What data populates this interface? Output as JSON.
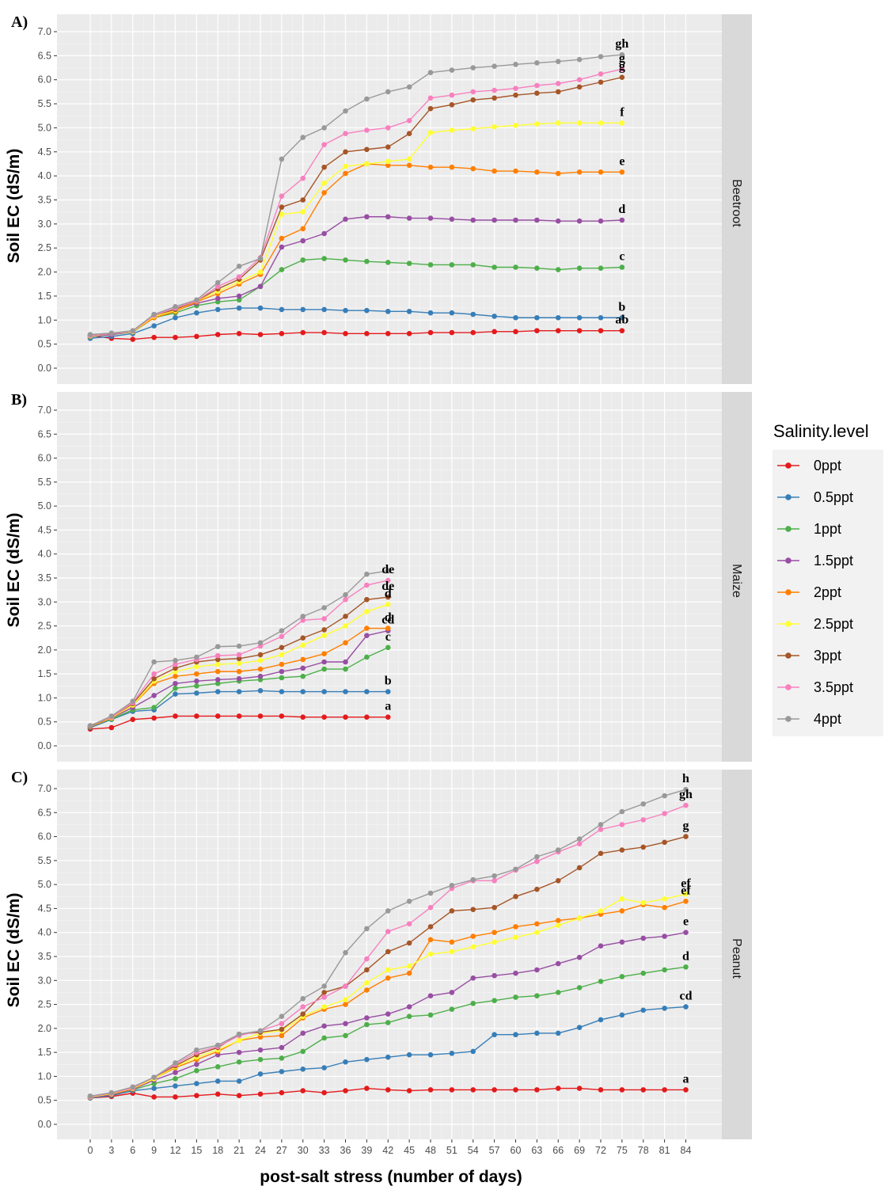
{
  "legend_title": "Salinity.level",
  "levels": [
    {
      "name": "0ppt",
      "color": "#E41A1C"
    },
    {
      "name": "0.5ppt",
      "color": "#377EB8"
    },
    {
      "name": "1ppt",
      "color": "#4DAF4A"
    },
    {
      "name": "1.5ppt",
      "color": "#984EA3"
    },
    {
      "name": "2ppt",
      "color": "#FF7F00"
    },
    {
      "name": "2.5ppt",
      "color": "#FFFF33"
    },
    {
      "name": "3ppt",
      "color": "#A65628"
    },
    {
      "name": "3.5ppt",
      "color": "#F781BF"
    },
    {
      "name": "4ppt",
      "color": "#999999"
    }
  ],
  "chart_data": {
    "type": "line",
    "xlabel": "post-salt stress (number of days)",
    "ylabel": "Soil EC (dS/m)",
    "ylim": [
      0,
      7.0
    ],
    "y_ticks": [
      "0.0",
      "0.5",
      "1.0",
      "1.5",
      "2.0",
      "2.5",
      "3.0",
      "3.5",
      "4.0",
      "4.5",
      "5.0",
      "5.5",
      "6.0",
      "6.5",
      "7.0"
    ],
    "x_ticks": [
      "0",
      "3",
      "6",
      "9",
      "12",
      "15",
      "18",
      "21",
      "24",
      "27",
      "30",
      "33",
      "36",
      "39",
      "42",
      "45",
      "48",
      "51",
      "54",
      "57",
      "60",
      "63",
      "66",
      "69",
      "72",
      "75",
      "78",
      "81",
      "84"
    ],
    "grid": true,
    "legend_position": "right",
    "panels": [
      {
        "tag": "A)",
        "strip": "Beetroot",
        "x": [
          0,
          3,
          6,
          9,
          12,
          15,
          18,
          21,
          24,
          27,
          30,
          33,
          36,
          39,
          42,
          45,
          48,
          51,
          54,
          57,
          60,
          63,
          66,
          69,
          72,
          75
        ],
        "series": [
          {
            "name": "0ppt",
            "values": [
              0.68,
              0.62,
              0.6,
              0.64,
              0.64,
              0.66,
              0.7,
              0.72,
              0.7,
              0.72,
              0.74,
              0.74,
              0.72,
              0.72,
              0.72,
              0.72,
              0.74,
              0.74,
              0.74,
              0.76,
              0.76,
              0.78,
              0.78,
              0.78,
              0.78,
              0.78
            ]
          },
          {
            "name": "0.5ppt",
            "values": [
              0.62,
              0.66,
              0.72,
              0.88,
              1.05,
              1.15,
              1.22,
              1.25,
              1.25,
              1.22,
              1.22,
              1.22,
              1.2,
              1.2,
              1.18,
              1.18,
              1.15,
              1.15,
              1.12,
              1.08,
              1.05,
              1.05,
              1.05,
              1.05,
              1.05,
              1.05
            ]
          },
          {
            "name": "1ppt",
            "values": [
              0.65,
              0.7,
              0.75,
              1.05,
              1.15,
              1.3,
              1.38,
              1.42,
              1.7,
              2.05,
              2.25,
              2.28,
              2.25,
              2.22,
              2.2,
              2.18,
              2.15,
              2.15,
              2.15,
              2.1,
              2.1,
              2.08,
              2.05,
              2.08,
              2.08,
              2.1
            ]
          },
          {
            "name": "1.5ppt",
            "values": [
              0.66,
              0.7,
              0.76,
              1.1,
              1.2,
              1.35,
              1.45,
              1.5,
              1.7,
              2.52,
              2.65,
              2.8,
              3.1,
              3.15,
              3.15,
              3.12,
              3.12,
              3.1,
              3.08,
              3.08,
              3.08,
              3.08,
              3.06,
              3.06,
              3.06,
              3.08
            ]
          },
          {
            "name": "2ppt",
            "values": [
              0.67,
              0.72,
              0.76,
              1.05,
              1.18,
              1.38,
              1.55,
              1.75,
              1.95,
              2.7,
              2.9,
              3.65,
              4.05,
              4.25,
              4.22,
              4.22,
              4.18,
              4.18,
              4.15,
              4.1,
              4.1,
              4.08,
              4.05,
              4.08,
              4.08,
              4.08
            ]
          },
          {
            "name": "2.5ppt",
            "values": [
              0.67,
              0.72,
              0.76,
              1.08,
              1.2,
              1.4,
              1.6,
              1.8,
              2.0,
              3.2,
              3.25,
              3.85,
              4.2,
              4.25,
              4.3,
              4.35,
              4.9,
              4.95,
              4.98,
              5.02,
              5.05,
              5.08,
              5.1,
              5.1,
              5.1,
              5.1
            ]
          },
          {
            "name": "3ppt",
            "values": [
              0.68,
              0.72,
              0.77,
              1.1,
              1.22,
              1.4,
              1.65,
              1.85,
              2.25,
              3.35,
              3.5,
              4.18,
              4.5,
              4.55,
              4.6,
              4.88,
              5.4,
              5.48,
              5.58,
              5.62,
              5.68,
              5.72,
              5.75,
              5.85,
              5.95,
              6.05
            ]
          },
          {
            "name": "3.5ppt",
            "values": [
              0.68,
              0.72,
              0.77,
              1.1,
              1.25,
              1.4,
              1.7,
              1.9,
              2.3,
              3.58,
              3.95,
              4.65,
              4.88,
              4.95,
              5.0,
              5.15,
              5.62,
              5.68,
              5.75,
              5.78,
              5.82,
              5.88,
              5.92,
              6.0,
              6.12,
              6.22
            ]
          },
          {
            "name": "4ppt",
            "values": [
              0.7,
              0.73,
              0.78,
              1.12,
              1.28,
              1.42,
              1.78,
              2.12,
              2.28,
              4.35,
              4.8,
              5.0,
              5.35,
              5.6,
              5.75,
              5.85,
              6.15,
              6.2,
              6.25,
              6.28,
              6.32,
              6.35,
              6.38,
              6.42,
              6.48,
              6.52
            ]
          }
        ],
        "sig_letters": [
          {
            "series": "0ppt",
            "text": "ab"
          },
          {
            "series": "0.5ppt",
            "text": "b"
          },
          {
            "series": "1ppt",
            "text": "c"
          },
          {
            "series": "1.5ppt",
            "text": "d"
          },
          {
            "series": "2ppt",
            "text": "e"
          },
          {
            "series": "2.5ppt",
            "text": "f"
          },
          {
            "series": "3ppt",
            "text": "g"
          },
          {
            "series": "3.5ppt",
            "text": "g"
          },
          {
            "series": "4ppt",
            "text": "gh"
          }
        ]
      },
      {
        "tag": "B)",
        "strip": "Maize",
        "x": [
          0,
          3,
          6,
          9,
          12,
          15,
          18,
          21,
          24,
          27,
          30,
          33,
          36,
          39,
          42
        ],
        "series": [
          {
            "name": "0ppt",
            "values": [
              0.35,
              0.38,
              0.55,
              0.58,
              0.62,
              0.62,
              0.62,
              0.62,
              0.62,
              0.62,
              0.6,
              0.6,
              0.6,
              0.6,
              0.6
            ]
          },
          {
            "name": "0.5ppt",
            "values": [
              0.38,
              0.55,
              0.72,
              0.75,
              1.08,
              1.1,
              1.13,
              1.13,
              1.15,
              1.13,
              1.13,
              1.13,
              1.13,
              1.13,
              1.13
            ]
          },
          {
            "name": "1ppt",
            "values": [
              0.4,
              0.56,
              0.75,
              0.8,
              1.2,
              1.25,
              1.3,
              1.35,
              1.38,
              1.42,
              1.45,
              1.6,
              1.6,
              1.85,
              2.05
            ]
          },
          {
            "name": "1.5ppt",
            "values": [
              0.4,
              0.58,
              0.8,
              1.05,
              1.3,
              1.35,
              1.38,
              1.4,
              1.45,
              1.55,
              1.62,
              1.75,
              1.75,
              2.3,
              2.4
            ]
          },
          {
            "name": "2ppt",
            "values": [
              0.4,
              0.58,
              0.85,
              1.3,
              1.45,
              1.5,
              1.55,
              1.55,
              1.6,
              1.7,
              1.8,
              1.92,
              2.15,
              2.45,
              2.45
            ]
          },
          {
            "name": "2.5ppt",
            "values": [
              0.41,
              0.59,
              0.85,
              1.35,
              1.55,
              1.65,
              1.7,
              1.72,
              1.78,
              1.9,
              2.1,
              2.3,
              2.5,
              2.8,
              2.95
            ]
          },
          {
            "name": "3ppt",
            "values": [
              0.41,
              0.6,
              0.88,
              1.4,
              1.62,
              1.75,
              1.8,
              1.82,
              1.9,
              2.05,
              2.25,
              2.42,
              2.7,
              3.05,
              3.1
            ]
          },
          {
            "name": "3.5ppt",
            "values": [
              0.42,
              0.6,
              0.9,
              1.5,
              1.7,
              1.8,
              1.88,
              1.9,
              2.08,
              2.28,
              2.62,
              2.65,
              3.05,
              3.35,
              3.45
            ]
          },
          {
            "name": "4ppt",
            "values": [
              0.42,
              0.62,
              0.93,
              1.75,
              1.78,
              1.85,
              2.07,
              2.08,
              2.15,
              2.4,
              2.7,
              2.88,
              3.15,
              3.58,
              3.65
            ]
          }
        ],
        "sig_letters": [
          {
            "series": "0ppt",
            "text": "a"
          },
          {
            "series": "0.5ppt",
            "text": "b"
          },
          {
            "series": "1ppt",
            "text": "c"
          },
          {
            "series": "1.5ppt",
            "text": "cd"
          },
          {
            "series": "2ppt",
            "text": "d"
          },
          {
            "series": "2.5ppt",
            "text": "d"
          },
          {
            "series": "3ppt",
            "text": "de"
          },
          {
            "series": "3.5ppt",
            "text": "de"
          }
        ]
      },
      {
        "tag": "C)",
        "strip": "Peanut",
        "x": [
          0,
          3,
          6,
          9,
          12,
          15,
          18,
          21,
          24,
          27,
          30,
          33,
          36,
          39,
          42,
          45,
          48,
          51,
          54,
          57,
          60,
          63,
          66,
          69,
          72,
          75,
          78,
          81,
          84
        ],
        "series": [
          {
            "name": "0ppt",
            "values": [
              0.55,
              0.58,
              0.65,
              0.57,
              0.57,
              0.6,
              0.63,
              0.6,
              0.63,
              0.66,
              0.7,
              0.66,
              0.7,
              0.75,
              0.72,
              0.7,
              0.72,
              0.72,
              0.72,
              0.72,
              0.72,
              0.72,
              0.75,
              0.75,
              0.72,
              0.72,
              0.72,
              0.72,
              0.72
            ]
          },
          {
            "name": "0.5ppt",
            "values": [
              0.55,
              0.6,
              0.7,
              0.75,
              0.8,
              0.85,
              0.9,
              0.9,
              1.05,
              1.1,
              1.15,
              1.18,
              1.3,
              1.35,
              1.4,
              1.45,
              1.45,
              1.48,
              1.52,
              1.87,
              1.87,
              1.9,
              1.9,
              2.02,
              2.18,
              2.28,
              2.38,
              2.42,
              2.45
            ]
          },
          {
            "name": "1ppt",
            "values": [
              0.56,
              0.62,
              0.72,
              0.85,
              0.95,
              1.12,
              1.2,
              1.3,
              1.35,
              1.38,
              1.52,
              1.8,
              1.85,
              2.08,
              2.12,
              2.25,
              2.28,
              2.4,
              2.52,
              2.58,
              2.65,
              2.68,
              2.75,
              2.85,
              2.98,
              3.08,
              3.15,
              3.22,
              3.28
            ]
          },
          {
            "name": "1.5ppt",
            "values": [
              0.56,
              0.62,
              0.73,
              0.92,
              1.08,
              1.25,
              1.45,
              1.5,
              1.55,
              1.6,
              1.9,
              2.05,
              2.1,
              2.22,
              2.3,
              2.45,
              2.68,
              2.75,
              3.05,
              3.1,
              3.15,
              3.22,
              3.35,
              3.48,
              3.72,
              3.8,
              3.88,
              3.92,
              4.0
            ]
          },
          {
            "name": "2ppt",
            "values": [
              0.57,
              0.63,
              0.74,
              0.95,
              1.18,
              1.35,
              1.52,
              1.75,
              1.82,
              1.85,
              2.22,
              2.4,
              2.5,
              2.8,
              3.05,
              3.15,
              3.85,
              3.8,
              3.92,
              4.0,
              4.12,
              4.18,
              4.25,
              4.3,
              4.38,
              4.45,
              4.58,
              4.52,
              4.65
            ]
          },
          {
            "name": "2.5ppt",
            "values": [
              0.57,
              0.64,
              0.75,
              0.95,
              1.2,
              1.4,
              1.55,
              1.75,
              1.9,
              1.95,
              2.25,
              2.45,
              2.6,
              2.95,
              3.22,
              3.3,
              3.55,
              3.6,
              3.7,
              3.8,
              3.9,
              4.0,
              4.15,
              4.3,
              4.45,
              4.7,
              4.62,
              4.7,
              4.8
            ]
          },
          {
            "name": "3ppt",
            "values": [
              0.58,
              0.65,
              0.76,
              0.98,
              1.22,
              1.45,
              1.6,
              1.88,
              1.92,
              1.98,
              2.3,
              2.75,
              2.88,
              3.22,
              3.6,
              3.78,
              4.12,
              4.45,
              4.48,
              4.52,
              4.75,
              4.9,
              5.08,
              5.35,
              5.65,
              5.72,
              5.78,
              5.88,
              6.0
            ]
          },
          {
            "name": "3.5ppt",
            "values": [
              0.58,
              0.65,
              0.76,
              0.98,
              1.25,
              1.5,
              1.62,
              1.85,
              1.95,
              2.1,
              2.45,
              2.65,
              2.88,
              3.45,
              4.02,
              4.18,
              4.52,
              4.92,
              5.08,
              5.08,
              5.3,
              5.48,
              5.68,
              5.85,
              6.15,
              6.25,
              6.35,
              6.48,
              6.65
            ]
          },
          {
            "name": "4ppt",
            "values": [
              0.59,
              0.66,
              0.78,
              0.98,
              1.28,
              1.55,
              1.65,
              1.88,
              1.95,
              2.25,
              2.62,
              2.88,
              3.58,
              4.08,
              4.45,
              4.65,
              4.82,
              4.98,
              5.1,
              5.18,
              5.32,
              5.58,
              5.72,
              5.95,
              6.25,
              6.52,
              6.68,
              6.85,
              6.98
            ]
          }
        ],
        "sig_letters": [
          {
            "series": "0ppt",
            "text": "a"
          },
          {
            "series": "0.5ppt",
            "text": "cd"
          },
          {
            "series": "1ppt",
            "text": "d"
          },
          {
            "series": "1.5ppt",
            "text": "e"
          },
          {
            "series": "2ppt",
            "text": "ef"
          },
          {
            "series": "2.5ppt",
            "text": "ef"
          },
          {
            "series": "3ppt",
            "text": "g"
          },
          {
            "series": "3.5ppt",
            "text": "gh"
          },
          {
            "series": "4ppt",
            "text": "h"
          }
        ]
      }
    ]
  }
}
